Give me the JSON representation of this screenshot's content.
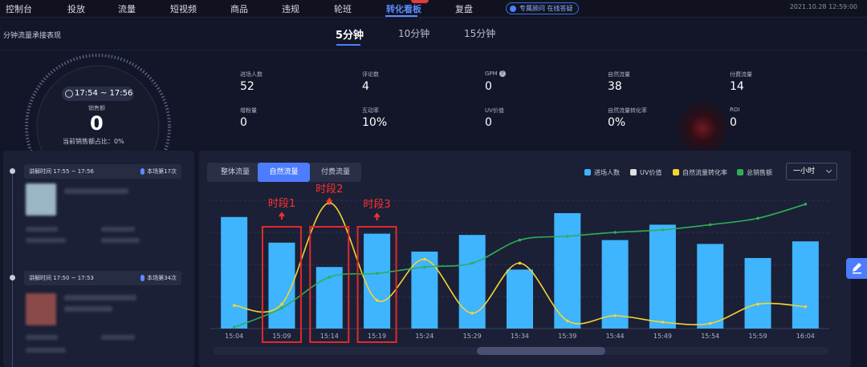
{
  "nav": {
    "items": [
      "控制台",
      "投放",
      "流量",
      "短视频",
      "商品",
      "违规",
      "轮班",
      "转化看板",
      "复盘"
    ],
    "active_index": 7,
    "help": "专属顾问 在线答疑",
    "datetime": "2021.10.28 12:59:00"
  },
  "subheader": {
    "title": "分钟流量承接表现",
    "intervals": [
      "5分钟",
      "10分钟",
      "15分钟"
    ],
    "active_interval": 0
  },
  "gauge": {
    "time_range": "17:54 ~ 17:56",
    "sales_label": "销售额",
    "sales_value": "0",
    "ratio": "当前销售额占比：0%"
  },
  "metrics": [
    {
      "label": "进场人数",
      "value": "52"
    },
    {
      "label": "评论数",
      "value": "4"
    },
    {
      "label": "GPM",
      "value": "0",
      "info": true
    },
    {
      "label": "自然流量",
      "value": "38"
    },
    {
      "label": "付费流量",
      "value": "14"
    },
    {
      "label": "增粉量",
      "value": "0"
    },
    {
      "label": "互动率",
      "value": "10%"
    },
    {
      "label": "UV价值",
      "value": "0"
    },
    {
      "label": "自然流量转化率",
      "value": "0%"
    },
    {
      "label": "ROI",
      "value": "0"
    }
  ],
  "left_panel": {
    "cards": [
      {
        "time": "讲解时间 17:55 ~ 17:56",
        "rank": "本场第17次"
      },
      {
        "time": "讲解时间 17:50 ~ 17:53",
        "rank": "本场第34次"
      }
    ]
  },
  "chart_panel": {
    "tabs": [
      "整体流量",
      "自然流量",
      "付费流量"
    ],
    "active_tab": 1,
    "interval_select": "一小时",
    "annotations": [
      "时段1",
      "时段2",
      "时段3"
    ]
  },
  "chart_data": {
    "type": "bar",
    "categories": [
      "15:04",
      "15:09",
      "15:14",
      "15:19",
      "15:24",
      "15:29",
      "15:34",
      "15:39",
      "15:44",
      "15:49",
      "15:54",
      "15:59",
      "16:04"
    ],
    "tick_labels": [
      "15:04",
      "15:09",
      "15:14",
      "15:19",
      "15:24",
      "15:29",
      "15:34",
      "15:39",
      "15:44",
      "15:49",
      "15:54",
      "15:59",
      "16:04"
    ],
    "legend": [
      {
        "name": "进场人数",
        "color": "#3fb4ff"
      },
      {
        "name": "UV价值",
        "color": "#e0e0e0"
      },
      {
        "name": "自然流量转化率",
        "color": "#f5d432"
      },
      {
        "name": "总销售额",
        "color": "#2fae57"
      }
    ],
    "series": [
      {
        "name": "进场人数",
        "type": "bar",
        "color": "#3fb4ff",
        "values": [
          0.87,
          0.67,
          0.48,
          0.74,
          0.6,
          0.73,
          0.46,
          0.9,
          0.69,
          0.81,
          0.66,
          0.55,
          0.68
        ]
      },
      {
        "name": "自然流量转化率",
        "type": "line",
        "color": "#f5d432",
        "values": [
          0.18,
          0.19,
          0.98,
          0.22,
          0.54,
          0.12,
          0.51,
          0.06,
          0.1,
          0.05,
          0.04,
          0.19,
          0.17
        ]
      },
      {
        "name": "总销售额",
        "type": "line",
        "color": "#2fae57",
        "values": [
          0.01,
          0.16,
          0.4,
          0.43,
          0.48,
          0.51,
          0.69,
          0.72,
          0.75,
          0.77,
          0.81,
          0.86,
          0.97
        ]
      }
    ],
    "grid": true
  }
}
